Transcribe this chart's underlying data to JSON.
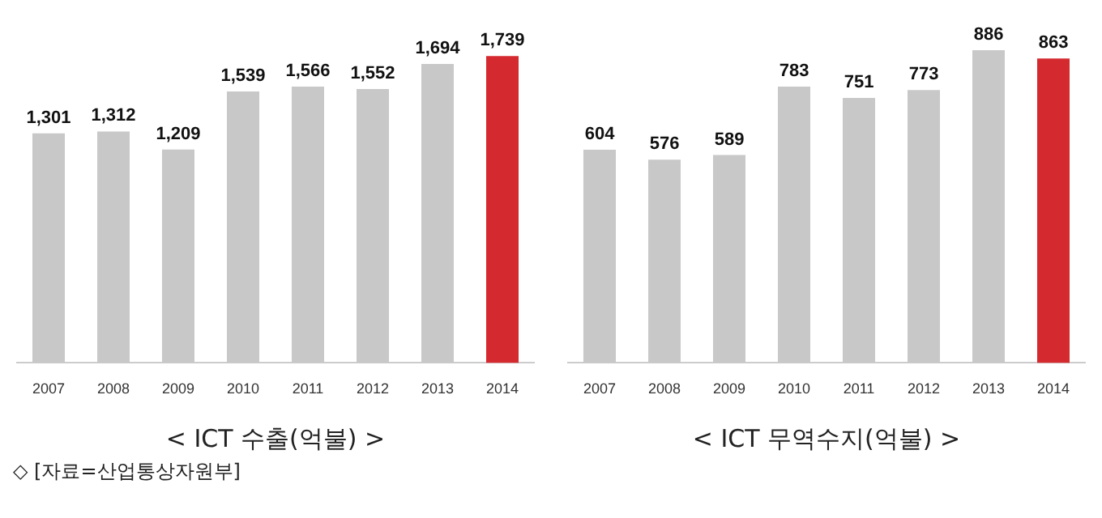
{
  "chart_data": [
    {
      "type": "bar",
      "title": "< ICT 수출(억불) >",
      "categories": [
        "2007",
        "2008",
        "2009",
        "2010",
        "2011",
        "2012",
        "2013",
        "2014"
      ],
      "values": [
        1301,
        1312,
        1209,
        1539,
        1566,
        1552,
        1694,
        1739
      ],
      "colors": [
        "#c8c8c8",
        "#c8c8c8",
        "#c8c8c8",
        "#c8c8c8",
        "#c8c8c8",
        "#c8c8c8",
        "#c8c8c8",
        "#d42a2f"
      ],
      "value_labels": [
        "1,301",
        "1,312",
        "1,209",
        "1,539",
        "1,566",
        "1,552",
        "1,694",
        "1,739"
      ],
      "tick_labels": "x",
      "annotations": [
        "◇ [자료=산업통상자원부]"
      ]
    },
    {
      "type": "bar",
      "title": "< ICT 무역수지(억불) >",
      "categories": [
        "2007",
        "2008",
        "2009",
        "2010",
        "2011",
        "2012",
        "2013",
        "2014"
      ],
      "values": [
        604,
        576,
        589,
        783,
        751,
        773,
        886,
        863
      ],
      "colors": [
        "#c8c8c8",
        "#c8c8c8",
        "#c8c8c8",
        "#c8c8c8",
        "#c8c8c8",
        "#c8c8c8",
        "#c8c8c8",
        "#d42a2f"
      ],
      "data_labels": true,
      "tick_labels": "x"
    }
  ]
}
